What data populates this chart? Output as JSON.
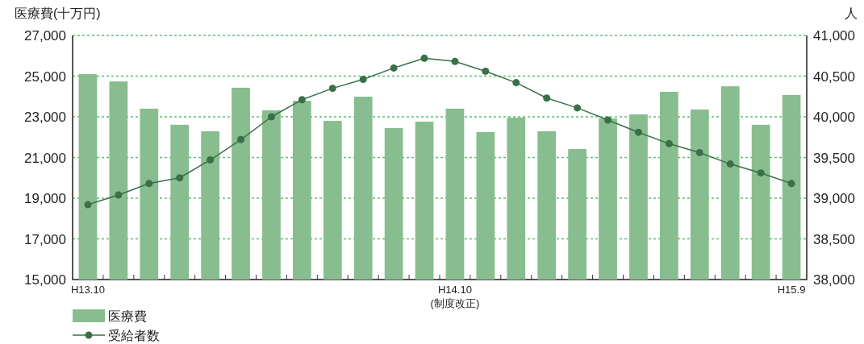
{
  "chart_data": {
    "type": "bar",
    "ylabel": "医療費(十万円)",
    "y2label": "人",
    "categories": [
      "H13.10",
      null,
      null,
      null,
      null,
      null,
      null,
      null,
      null,
      null,
      null,
      null,
      "H14.10",
      null,
      null,
      null,
      null,
      null,
      null,
      null,
      null,
      null,
      null,
      "H15.9"
    ],
    "series": [
      {
        "name": "医療費",
        "color": "#88bd8f",
        "values": [
          25100,
          24740,
          23400,
          22610,
          22290,
          24430,
          23320,
          23790,
          22800,
          23990,
          22450,
          22760,
          23400,
          22250,
          22960,
          22290,
          21420,
          22920,
          23120,
          24230,
          23360,
          24500,
          22610,
          24070
        ]
      },
      {
        "name": "受給者数",
        "type": "line",
        "axis": "y2",
        "color": "#3a7048",
        "marker": "circle",
        "values": [
          38920,
          39040,
          39180,
          39250,
          39470,
          39720,
          40000,
          40210,
          40350,
          40460,
          40600,
          40720,
          40680,
          40560,
          40420,
          40230,
          40110,
          39960,
          39810,
          39670,
          39560,
          39420,
          39310,
          39180
        ]
      }
    ],
    "ylim": [
      15000,
      27000
    ],
    "yticks": [
      {
        "value": 15000,
        "label": "15,000"
      },
      {
        "value": 17000,
        "label": "17,000"
      },
      {
        "value": 19000,
        "label": "19,000"
      },
      {
        "value": 21000,
        "label": "21,000"
      },
      {
        "value": 23000,
        "label": "23,000"
      },
      {
        "value": 25000,
        "label": "25,000"
      },
      {
        "value": 27000,
        "label": "27,000"
      }
    ],
    "y2lim": [
      38000,
      41000
    ],
    "y2ticks": [
      {
        "value": 38000,
        "label": "38,000"
      },
      {
        "value": 38500,
        "label": "38,500"
      },
      {
        "value": 39000,
        "label": "39,000"
      },
      {
        "value": 39500,
        "label": "39,500"
      },
      {
        "value": 40000,
        "label": "40,000"
      },
      {
        "value": 40500,
        "label": "40,500"
      },
      {
        "value": 41000,
        "label": "41,000"
      }
    ],
    "annotations": [
      "(制度改正)"
    ],
    "grid": "y",
    "legend": "bottom left"
  }
}
